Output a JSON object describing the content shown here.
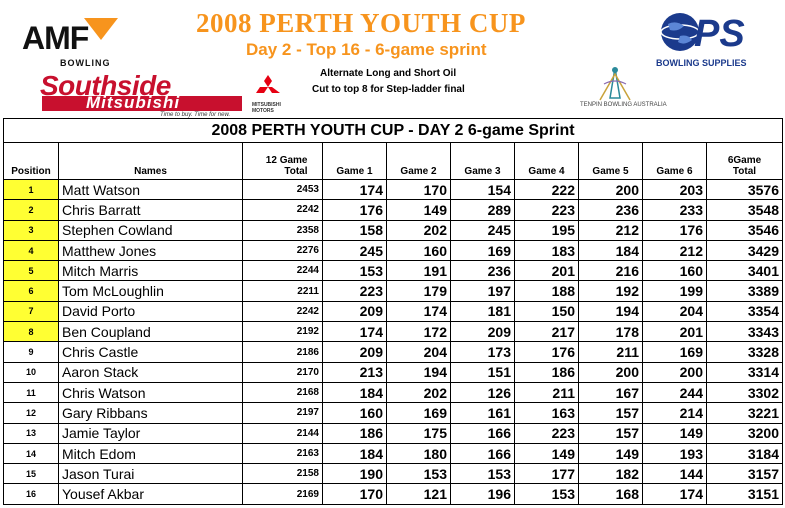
{
  "header": {
    "title": "2008 PERTH YOUTH CUP",
    "subtitle": "Day 2 - Top 16 - 6-game sprint",
    "note1": "Alternate Long and Short Oil",
    "note2": "Cut to top 8 for Step-ladder final",
    "colors": {
      "title": "#f7941d",
      "highlight": "#ffff33",
      "southside_red": "#c8102e",
      "ps_blue": "#1b3a8c"
    }
  },
  "logos": {
    "amf": {
      "word": "AMF",
      "sub": "BOWLING"
    },
    "southside": {
      "word": "Southside",
      "brand": "Mitsubishi",
      "tagline": "Time to buy. Time for new.",
      "motors": "MITSUBISHI MOTORS"
    },
    "tenpin": {
      "text": "TENPIN BOWLING AUSTRALIA"
    },
    "ps": {
      "word": "PS",
      "text": "BOWLING SUPPLIES"
    }
  },
  "table": {
    "banner": "2008 PERTH YOUTH CUP - DAY 2 6-game Sprint",
    "columns": {
      "position": "Position",
      "names": "Names",
      "total12": "12 Game Total",
      "g1": "Game 1",
      "g2": "Game 2",
      "g3": "Game 3",
      "g4": "Game 4",
      "g5": "Game 5",
      "g6": "Game 6",
      "total6": "6Game Total"
    },
    "rows": [
      {
        "pos": "1",
        "name": "Matt Watson",
        "t12": "2453",
        "g": [
          "174",
          "170",
          "154",
          "222",
          "200",
          "203"
        ],
        "t6": "3576"
      },
      {
        "pos": "2",
        "name": "Chris Barratt",
        "t12": "2242",
        "g": [
          "176",
          "149",
          "289",
          "223",
          "236",
          "233"
        ],
        "t6": "3548"
      },
      {
        "pos": "3",
        "name": "Stephen Cowland",
        "t12": "2358",
        "g": [
          "158",
          "202",
          "245",
          "195",
          "212",
          "176"
        ],
        "t6": "3546"
      },
      {
        "pos": "4",
        "name": "Matthew Jones",
        "t12": "2276",
        "g": [
          "245",
          "160",
          "169",
          "183",
          "184",
          "212"
        ],
        "t6": "3429"
      },
      {
        "pos": "5",
        "name": "Mitch Marris",
        "t12": "2244",
        "g": [
          "153",
          "191",
          "236",
          "201",
          "216",
          "160"
        ],
        "t6": "3401"
      },
      {
        "pos": "6",
        "name": "Tom McLoughlin",
        "t12": "2211",
        "g": [
          "223",
          "179",
          "197",
          "188",
          "192",
          "199"
        ],
        "t6": "3389"
      },
      {
        "pos": "7",
        "name": "David Porto",
        "t12": "2242",
        "g": [
          "209",
          "174",
          "181",
          "150",
          "194",
          "204"
        ],
        "t6": "3354"
      },
      {
        "pos": "8",
        "name": "Ben Coupland",
        "t12": "2192",
        "g": [
          "174",
          "172",
          "209",
          "217",
          "178",
          "201"
        ],
        "t6": "3343"
      },
      {
        "pos": "9",
        "name": "Chris Castle",
        "t12": "2186",
        "g": [
          "209",
          "204",
          "173",
          "176",
          "211",
          "169"
        ],
        "t6": "3328"
      },
      {
        "pos": "10",
        "name": "Aaron Stack",
        "t12": "2170",
        "g": [
          "213",
          "194",
          "151",
          "186",
          "200",
          "200"
        ],
        "t6": "3314"
      },
      {
        "pos": "11",
        "name": "Chris Watson",
        "t12": "2168",
        "g": [
          "184",
          "202",
          "126",
          "211",
          "167",
          "244"
        ],
        "t6": "3302"
      },
      {
        "pos": "12",
        "name": "Gary Ribbans",
        "t12": "2197",
        "g": [
          "160",
          "169",
          "161",
          "163",
          "157",
          "214"
        ],
        "t6": "3221"
      },
      {
        "pos": "13",
        "name": "Jamie Taylor",
        "t12": "2144",
        "g": [
          "186",
          "175",
          "166",
          "223",
          "157",
          "149"
        ],
        "t6": "3200"
      },
      {
        "pos": "14",
        "name": "Mitch Edom",
        "t12": "2163",
        "g": [
          "184",
          "180",
          "166",
          "149",
          "149",
          "193"
        ],
        "t6": "3184"
      },
      {
        "pos": "15",
        "name": "Jason Turai",
        "t12": "2158",
        "g": [
          "190",
          "153",
          "153",
          "177",
          "182",
          "144"
        ],
        "t6": "3157"
      },
      {
        "pos": "16",
        "name": "Yousef Akbar",
        "t12": "2169",
        "g": [
          "170",
          "121",
          "196",
          "153",
          "168",
          "174"
        ],
        "t6": "3151"
      }
    ],
    "highlighted_positions": 8
  }
}
